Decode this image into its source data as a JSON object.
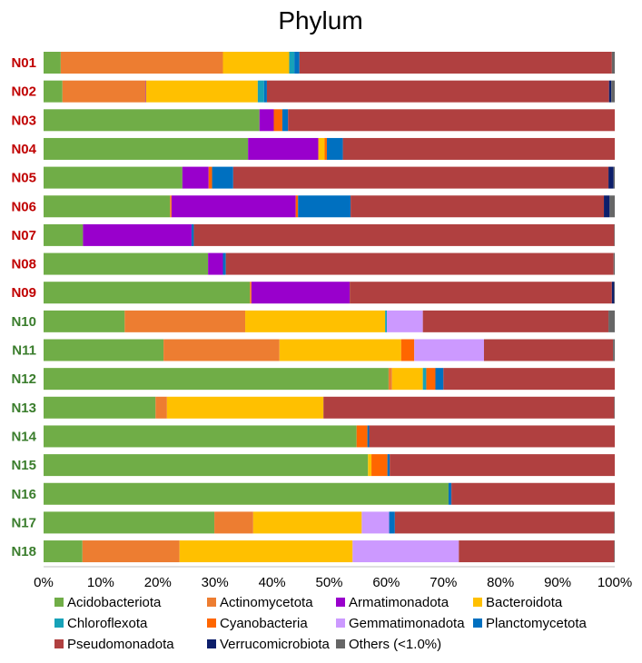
{
  "chart_data": {
    "type": "bar",
    "orientation": "horizontal",
    "stacked": true,
    "title": "Phylum",
    "xlim": [
      0,
      100
    ],
    "x_ticks": [
      "0%",
      "10%",
      "20%",
      "30%",
      "40%",
      "50%",
      "60%",
      "70%",
      "80%",
      "90%",
      "100%"
    ],
    "grid": false,
    "legend_position": "bottom",
    "categories": [
      "N01",
      "N02",
      "N03",
      "N04",
      "N05",
      "N06",
      "N07",
      "N08",
      "N09",
      "N10",
      "N11",
      "N12",
      "N13",
      "N14",
      "N15",
      "N16",
      "N17",
      "N18"
    ],
    "category_colors": [
      "#c00000",
      "#c00000",
      "#c00000",
      "#c00000",
      "#c00000",
      "#c00000",
      "#c00000",
      "#c00000",
      "#c00000",
      "#3a7d2c",
      "#3a7d2c",
      "#3a7d2c",
      "#3a7d2c",
      "#3a7d2c",
      "#3a7d2c",
      "#3a7d2c",
      "#3a7d2c",
      "#3a7d2c"
    ],
    "series": [
      {
        "name": "Acidobacteriota",
        "color": "#70ad47",
        "values": [
          3.0,
          3.3,
          37.8,
          35.8,
          24.3,
          22.1,
          6.9,
          28.8,
          36.1,
          14.2,
          21.0,
          60.4,
          19.6,
          54.8,
          56.8,
          70.9,
          29.9,
          6.8
        ]
      },
      {
        "name": "Actinomycetota",
        "color": "#ed7d31",
        "values": [
          28.4,
          14.5,
          0,
          0,
          0,
          0.3,
          0,
          0,
          0.3,
          21.1,
          20.3,
          0.6,
          2.0,
          0,
          0,
          0,
          6.8,
          17.0
        ]
      },
      {
        "name": "Armatimonadota",
        "color": "#9900cc",
        "values": [
          0,
          0.1,
          2.5,
          12.3,
          4.6,
          21.7,
          19.0,
          2.6,
          17.2,
          0,
          0,
          0,
          0,
          0,
          0,
          0,
          0,
          0
        ]
      },
      {
        "name": "Bacteroidota",
        "color": "#ffc000",
        "values": [
          11.6,
          19.6,
          0,
          1.1,
          0,
          0,
          0,
          0,
          0,
          24.5,
          21.3,
          5.4,
          27.4,
          0,
          0.6,
          0,
          19.0,
          30.3
        ]
      },
      {
        "name": "Chloroflexota",
        "color": "#17a2b8",
        "values": [
          0.9,
          1.1,
          0,
          0,
          0,
          0,
          0,
          0,
          0,
          0.3,
          0,
          0.6,
          0,
          0,
          0,
          0,
          0,
          0
        ]
      },
      {
        "name": "Cyanobacteria",
        "color": "#ff6600",
        "values": [
          0,
          0,
          1.5,
          0.4,
          0.6,
          0.4,
          0,
          0,
          0,
          0,
          2.3,
          1.6,
          0,
          1.9,
          2.8,
          0,
          0,
          0
        ]
      },
      {
        "name": "Gemmatimonadota",
        "color": "#cc99ff",
        "values": [
          0,
          0,
          0,
          0,
          0,
          0,
          0,
          0,
          0,
          6.3,
          12.2,
          0,
          0,
          0,
          0,
          0,
          4.8,
          18.6
        ]
      },
      {
        "name": "Planctomycetota",
        "color": "#0070c0",
        "values": [
          0.9,
          0.5,
          1.0,
          2.8,
          3.7,
          9.2,
          0.4,
          0.5,
          0,
          0,
          0,
          1.4,
          0,
          0.3,
          0.4,
          0.5,
          1.0,
          0
        ]
      },
      {
        "name": "Pseudomonadota",
        "color": "#b04040",
        "values": [
          54.7,
          59.9,
          57.2,
          47.6,
          65.7,
          44.3,
          73.6,
          67.9,
          45.9,
          32.5,
          22.6,
          30.0,
          50.9,
          43.0,
          39.4,
          28.6,
          38.4,
          27.2
        ]
      },
      {
        "name": "Verrucomicrobiota",
        "color": "#0d1f6b",
        "values": [
          0,
          0.4,
          0,
          0,
          0.9,
          1.0,
          0,
          0,
          0.4,
          0,
          0,
          0,
          0,
          0,
          0,
          0,
          0,
          0
        ]
      },
      {
        "name": "Others (<1.0%)",
        "color": "#666666",
        "values": [
          0.5,
          0.6,
          0,
          0,
          0.2,
          0.9,
          0.1,
          0.2,
          0.1,
          1.1,
          0.3,
          0,
          0.1,
          0,
          0,
          0,
          0.1,
          0.1
        ]
      }
    ]
  }
}
